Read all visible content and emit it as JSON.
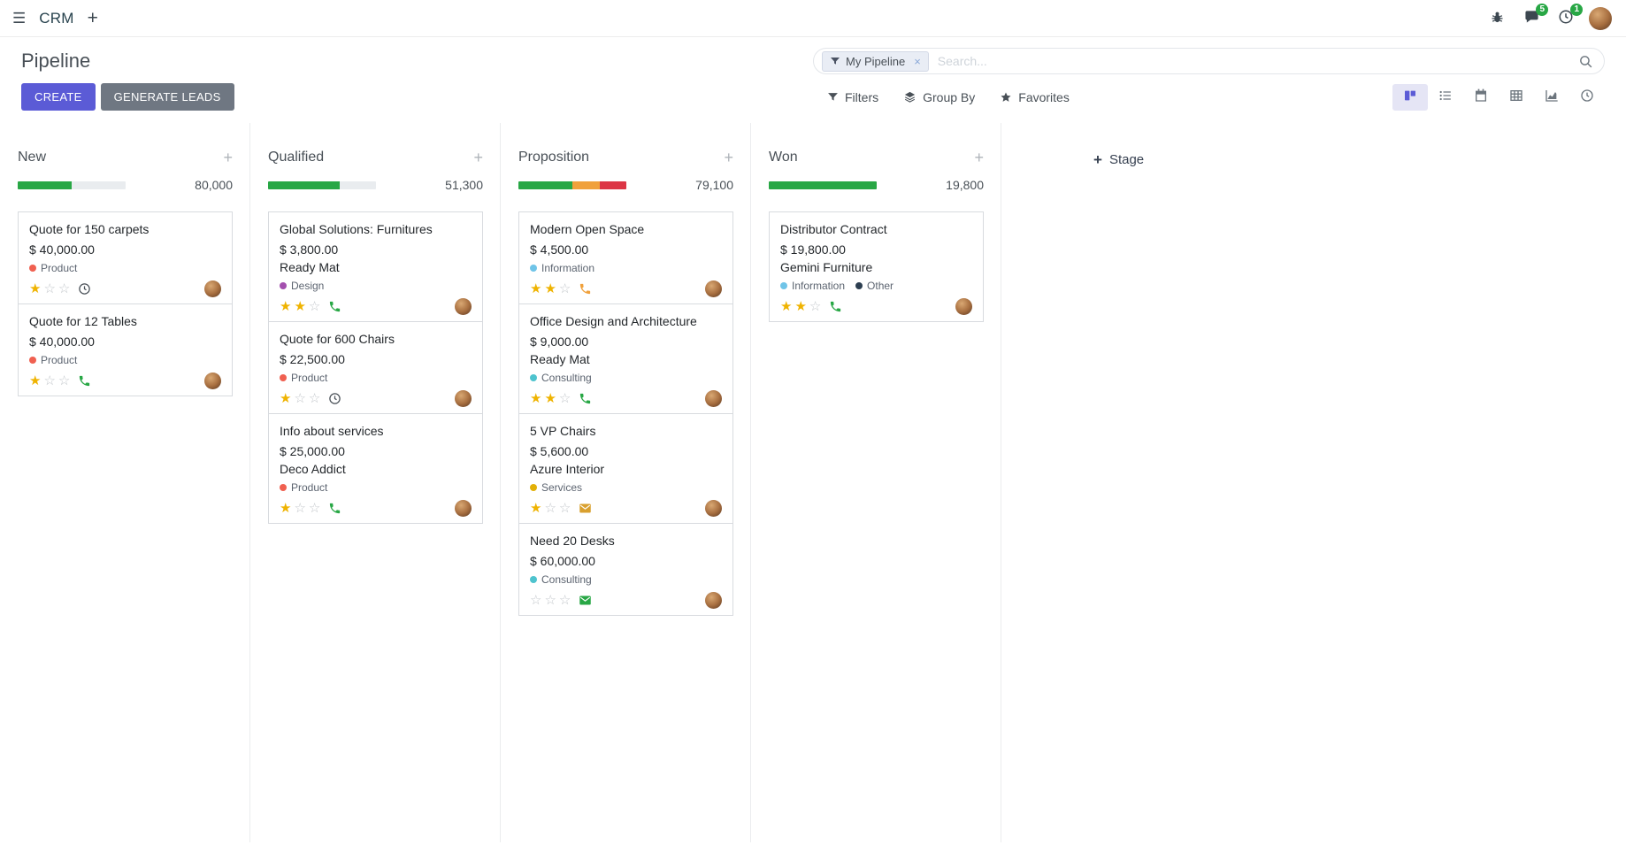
{
  "theme": {
    "accent": "#5b5bd6",
    "success": "#28a745",
    "warning": "#f0a13c",
    "danger": "#dc3545",
    "star": "#efb300",
    "muted_bar": "#e9ecef"
  },
  "navbar": {
    "app_name": "CRM",
    "messages_badge": "5",
    "activities_badge": "1"
  },
  "control_panel": {
    "title": "Pipeline",
    "search": {
      "facet_label": "My Pipeline",
      "placeholder": "Search..."
    },
    "create_label": "CREATE",
    "generate_leads_label": "GENERATE LEADS",
    "filters_label": "Filters",
    "group_by_label": "Group By",
    "favorites_label": "Favorites",
    "views": [
      {
        "name": "kanban",
        "active": true
      },
      {
        "name": "list",
        "active": false
      },
      {
        "name": "calendar",
        "active": false
      },
      {
        "name": "pivot",
        "active": false
      },
      {
        "name": "graph",
        "active": false
      },
      {
        "name": "activity",
        "active": false
      }
    ]
  },
  "kanban": {
    "add_stage_label": "Stage",
    "columns": [
      {
        "name": "New",
        "counter": "80,000",
        "progress": [
          {
            "color": "#28a745",
            "pct": 50
          }
        ],
        "cards": [
          {
            "title": "Quote for 150 carpets",
            "amount": "$ 40,000.00",
            "partner": "",
            "tags": [
              {
                "label": "Product",
                "color": "#f06050"
              }
            ],
            "stars": 1,
            "activity": {
              "icon": "clock",
              "color": "#495057"
            }
          },
          {
            "title": "Quote for 12 Tables",
            "amount": "$ 40,000.00",
            "partner": "",
            "tags": [
              {
                "label": "Product",
                "color": "#f06050"
              }
            ],
            "stars": 1,
            "activity": {
              "icon": "phone",
              "color": "#28a745"
            }
          }
        ]
      },
      {
        "name": "Qualified",
        "counter": "51,300",
        "progress": [
          {
            "color": "#28a745",
            "pct": 66
          }
        ],
        "cards": [
          {
            "title": "Global Solutions: Furnitures",
            "amount": "$ 3,800.00",
            "partner": "Ready Mat",
            "tags": [
              {
                "label": "Design",
                "color": "#a34fae"
              }
            ],
            "stars": 2,
            "activity": {
              "icon": "phone",
              "color": "#28a745"
            }
          },
          {
            "title": "Quote for 600 Chairs",
            "amount": "$ 22,500.00",
            "partner": "",
            "tags": [
              {
                "label": "Product",
                "color": "#f06050"
              }
            ],
            "stars": 1,
            "activity": {
              "icon": "clock",
              "color": "#495057"
            }
          },
          {
            "title": "Info about services",
            "amount": "$ 25,000.00",
            "partner": "Deco Addict",
            "tags": [
              {
                "label": "Product",
                "color": "#f06050"
              }
            ],
            "stars": 1,
            "activity": {
              "icon": "phone",
              "color": "#28a745"
            }
          }
        ]
      },
      {
        "name": "Proposition",
        "counter": "79,100",
        "progress": [
          {
            "color": "#28a745",
            "pct": 50
          },
          {
            "color": "#f0a13c",
            "pct": 25
          },
          {
            "color": "#dc3545",
            "pct": 25
          }
        ],
        "cards": [
          {
            "title": "Modern Open Space",
            "amount": "$ 4,500.00",
            "partner": "",
            "tags": [
              {
                "label": "Information",
                "color": "#6fc4e8"
              }
            ],
            "stars": 2,
            "activity": {
              "icon": "phone",
              "color": "#f0a13c"
            }
          },
          {
            "title": "Office Design and Architecture",
            "amount": "$ 9,000.00",
            "partner": "Ready Mat",
            "tags": [
              {
                "label": "Consulting",
                "color": "#4ec3ce"
              }
            ],
            "stars": 2,
            "activity": {
              "icon": "phone",
              "color": "#28a745"
            }
          },
          {
            "title": "5 VP Chairs",
            "amount": "$ 5,600.00",
            "partner": "Azure Interior",
            "tags": [
              {
                "label": "Services",
                "color": "#e2b007"
              }
            ],
            "stars": 1,
            "activity": {
              "icon": "envelope",
              "color": "#d9a02f"
            }
          },
          {
            "title": "Need 20 Desks",
            "amount": "$ 60,000.00",
            "partner": "",
            "tags": [
              {
                "label": "Consulting",
                "color": "#4ec3ce"
              }
            ],
            "stars": 0,
            "activity": {
              "icon": "envelope",
              "color": "#28a745"
            }
          }
        ]
      },
      {
        "name": "Won",
        "counter": "19,800",
        "progress": [
          {
            "color": "#28a745",
            "pct": 100
          }
        ],
        "cards": [
          {
            "title": "Distributor Contract",
            "amount": "$ 19,800.00",
            "partner": "Gemini Furniture",
            "tags": [
              {
                "label": "Information",
                "color": "#6fc4e8"
              },
              {
                "label": "Other",
                "color": "#2c3e50"
              }
            ],
            "stars": 2,
            "activity": {
              "icon": "phone",
              "color": "#28a745"
            }
          }
        ]
      }
    ]
  }
}
